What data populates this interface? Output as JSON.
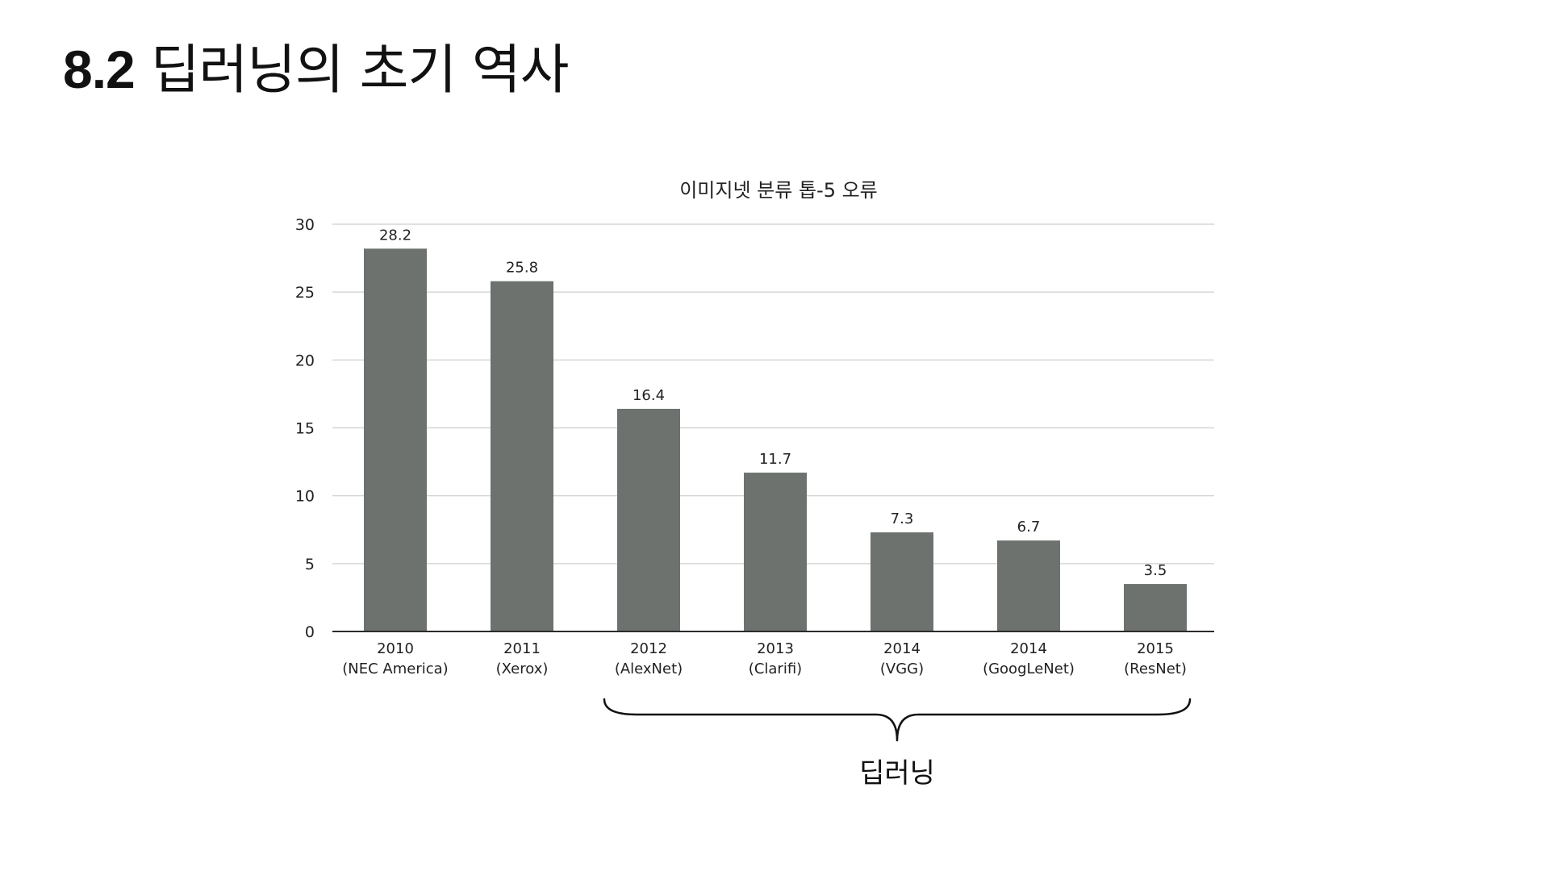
{
  "header": {
    "section_number": "8.2",
    "title": "딥러닝의 초기 역사"
  },
  "colors": {
    "bar": "#6d726e",
    "grid": "#d6d6d6",
    "axis": "#2b2b2b",
    "text": "#222222"
  },
  "chart_data": {
    "type": "bar",
    "title": "이미지넷 분류 톱-5 오류",
    "xlabel": "",
    "ylabel": "",
    "ylim": [
      0,
      30
    ],
    "yticks": [
      "0",
      "5",
      "10",
      "15",
      "20",
      "25",
      "30"
    ],
    "grid": true,
    "legend": "none",
    "categories": [
      {
        "year": "2010",
        "name": "(NEC America)"
      },
      {
        "year": "2011",
        "name": "(Xerox)"
      },
      {
        "year": "2012",
        "name": "(AlexNet)"
      },
      {
        "year": "2013",
        "name": "(Clarifi)"
      },
      {
        "year": "2014",
        "name": "(VGG)"
      },
      {
        "year": "2014",
        "name": "(GoogLeNet)"
      },
      {
        "year": "2015",
        "name": "(ResNet)"
      }
    ],
    "values": [
      28.2,
      25.8,
      16.4,
      11.7,
      7.3,
      6.7,
      3.5
    ],
    "value_labels": [
      "28.2",
      "25.8",
      "16.4",
      "11.7",
      "7.3",
      "6.7",
      "3.5"
    ],
    "annotations": [
      {
        "type": "brace",
        "from_category": 2,
        "to_category": 6,
        "label": "딥러닝"
      }
    ]
  }
}
